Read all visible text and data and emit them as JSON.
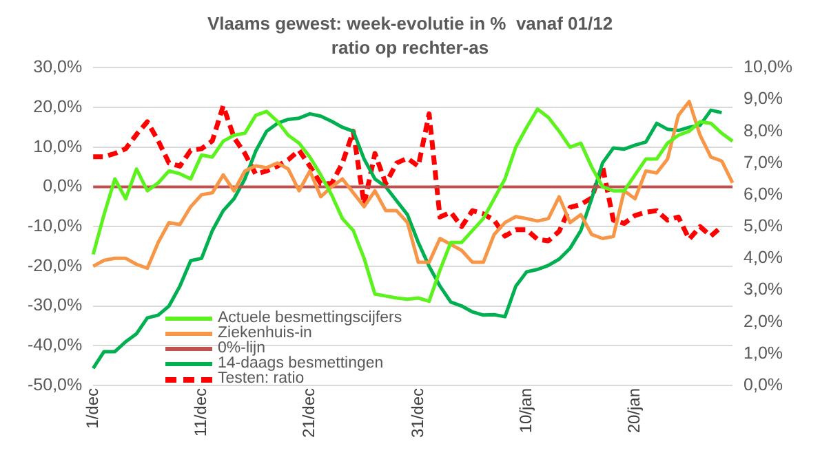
{
  "chart_data": {
    "type": "line",
    "title": "Vlaams gewest: week-evolutie in %  vanaf 01/12",
    "subtitle": "ratio op rechter-as",
    "categories": [
      "1/dec",
      null,
      null,
      null,
      null,
      null,
      null,
      null,
      null,
      null,
      "11/dec",
      null,
      null,
      null,
      null,
      null,
      null,
      null,
      null,
      null,
      "21/dec",
      null,
      null,
      null,
      null,
      null,
      null,
      null,
      null,
      null,
      "31/dec",
      null,
      null,
      null,
      null,
      null,
      null,
      null,
      null,
      null,
      "10/jan",
      null,
      null,
      null,
      null,
      null,
      null,
      null,
      null,
      null,
      "20/jan",
      null,
      null,
      null,
      null,
      null,
      null,
      null,
      null,
      null
    ],
    "series": [
      {
        "name": "Actuele besmettingscijfers",
        "color": "#5cf21e",
        "values": [
          -17,
          -7,
          2,
          -3,
          4.5,
          -1,
          1,
          4,
          3.3,
          2,
          8,
          7.5,
          11.5,
          13,
          13.5,
          18,
          19,
          16.5,
          13,
          11,
          7.5,
          3,
          -2,
          -8,
          -11,
          -18,
          -27,
          -27.5,
          -28,
          -28.3,
          -28,
          -28.8,
          -21,
          -14,
          -14,
          -11,
          -8,
          -3,
          2,
          10,
          15,
          19.6,
          17.5,
          14,
          10,
          11,
          5,
          0,
          -1,
          -1,
          3,
          7,
          7,
          11,
          13,
          14,
          16.4,
          16,
          13.5,
          11.5
        ]
      },
      {
        "name": "Ziekenhuis-in",
        "color": "#f79646",
        "values": [
          -20,
          -18.5,
          -18,
          -18,
          -19.5,
          -20.5,
          -14,
          -9,
          -9.5,
          -5,
          -2,
          -1.5,
          3,
          -1,
          4,
          5.3,
          4.8,
          6,
          4.5,
          -1,
          4,
          -2.5,
          0,
          2,
          -1.5,
          -5,
          -1,
          -6,
          -6,
          -9,
          -19,
          -19,
          -13,
          -14.5,
          -16,
          -19,
          -19,
          -12,
          -9,
          -7.5,
          -8,
          -8.6,
          -8,
          -2.5,
          -9,
          -7,
          -12,
          -13,
          -12.5,
          -1,
          -3,
          4,
          3.5,
          7,
          18,
          21.5,
          13,
          7.5,
          6.5,
          1
        ]
      },
      {
        "name": "0%-lijn",
        "color": "#c0504d",
        "values": [
          0,
          0,
          0,
          0,
          0,
          0,
          0,
          0,
          0,
          0,
          0,
          0,
          0,
          0,
          0,
          0,
          0,
          0,
          0,
          0,
          0,
          0,
          0,
          0,
          0,
          0,
          0,
          0,
          0,
          0,
          0,
          0,
          0,
          0,
          0,
          0,
          0,
          0,
          0,
          0,
          0,
          0,
          0,
          0,
          0,
          0,
          0,
          0,
          0,
          0,
          0,
          0,
          0,
          0,
          0,
          0,
          0,
          0,
          0,
          0
        ]
      },
      {
        "name": "14-daags besmettingen",
        "color": "#00b050",
        "values": [
          -45.7,
          -41.5,
          -41.5,
          -39,
          -37,
          -33,
          -32.3,
          -30,
          -25,
          -18.6,
          -18,
          -11,
          -6,
          -3,
          2,
          9,
          14,
          16,
          17,
          17.3,
          18.4,
          17.8,
          16.5,
          15,
          14,
          7,
          2,
          0,
          -3.5,
          -7,
          -14,
          -20,
          -25,
          -29,
          -30,
          -31.5,
          -32.3,
          -32.2,
          -32.7,
          -25,
          -21.4,
          -20.8,
          -19.8,
          -18.2,
          -15.5,
          -11,
          -3,
          6,
          9.8,
          9.5,
          10.5,
          11.3,
          16,
          14.5,
          14.2,
          15,
          15.5,
          19.3,
          18.7,
          null
        ]
      },
      {
        "name": "Testen: ratio",
        "color": "#ff0000",
        "axis": "y2",
        "line_style": "dashed",
        "values": [
          7.2,
          7.2,
          7.3,
          7.45,
          7.9,
          8.3,
          7.7,
          7.0,
          6.9,
          7.4,
          7.45,
          7.7,
          8.8,
          7.8,
          7.3,
          6.65,
          6.75,
          6.9,
          7.1,
          7.4,
          6.9,
          6.35,
          6.35,
          7.0,
          8.0,
          5.7,
          7.3,
          6.35,
          7.0,
          7.15,
          6.9,
          8.55,
          5.3,
          5.45,
          5.0,
          5.5,
          5.4,
          5.2,
          4.7,
          4.9,
          4.9,
          4.6,
          4.55,
          4.85,
          5.6,
          5.7,
          5.9,
          6.9,
          5.2,
          5.1,
          5.35,
          5.45,
          5.5,
          5.2,
          5.3,
          4.6,
          5.0,
          4.7,
          5.0,
          null
        ]
      }
    ],
    "ylim": [
      -50,
      30
    ],
    "yticks": [
      {
        "value": -50,
        "label": "-50,0%"
      },
      {
        "value": -40,
        "label": "-40,0%"
      },
      {
        "value": -30,
        "label": "-30,0%"
      },
      {
        "value": -20,
        "label": "-20,0%"
      },
      {
        "value": -10,
        "label": "-10,0%"
      },
      {
        "value": 0,
        "label": "0,0%"
      },
      {
        "value": 10,
        "label": "10,0%"
      },
      {
        "value": 20,
        "label": "20,0%"
      },
      {
        "value": 30,
        "label": "30,0%"
      }
    ],
    "y2lim": [
      0,
      10
    ],
    "y2ticks": [
      {
        "value": 0,
        "label": "0,0%"
      },
      {
        "value": 1,
        "label": "1,0%"
      },
      {
        "value": 2,
        "label": "2,0%"
      },
      {
        "value": 3,
        "label": "3,0%"
      },
      {
        "value": 4,
        "label": "4,0%"
      },
      {
        "value": 5,
        "label": "5,0%"
      },
      {
        "value": 6,
        "label": "6,0%"
      },
      {
        "value": 7,
        "label": "7,0%"
      },
      {
        "value": 8,
        "label": "8,0%"
      },
      {
        "value": 9,
        "label": "9,0%"
      },
      {
        "value": 10,
        "label": "10,0%"
      }
    ],
    "grid": "y",
    "legend": "bottom left",
    "marker": "none",
    "line_style": "solid"
  }
}
